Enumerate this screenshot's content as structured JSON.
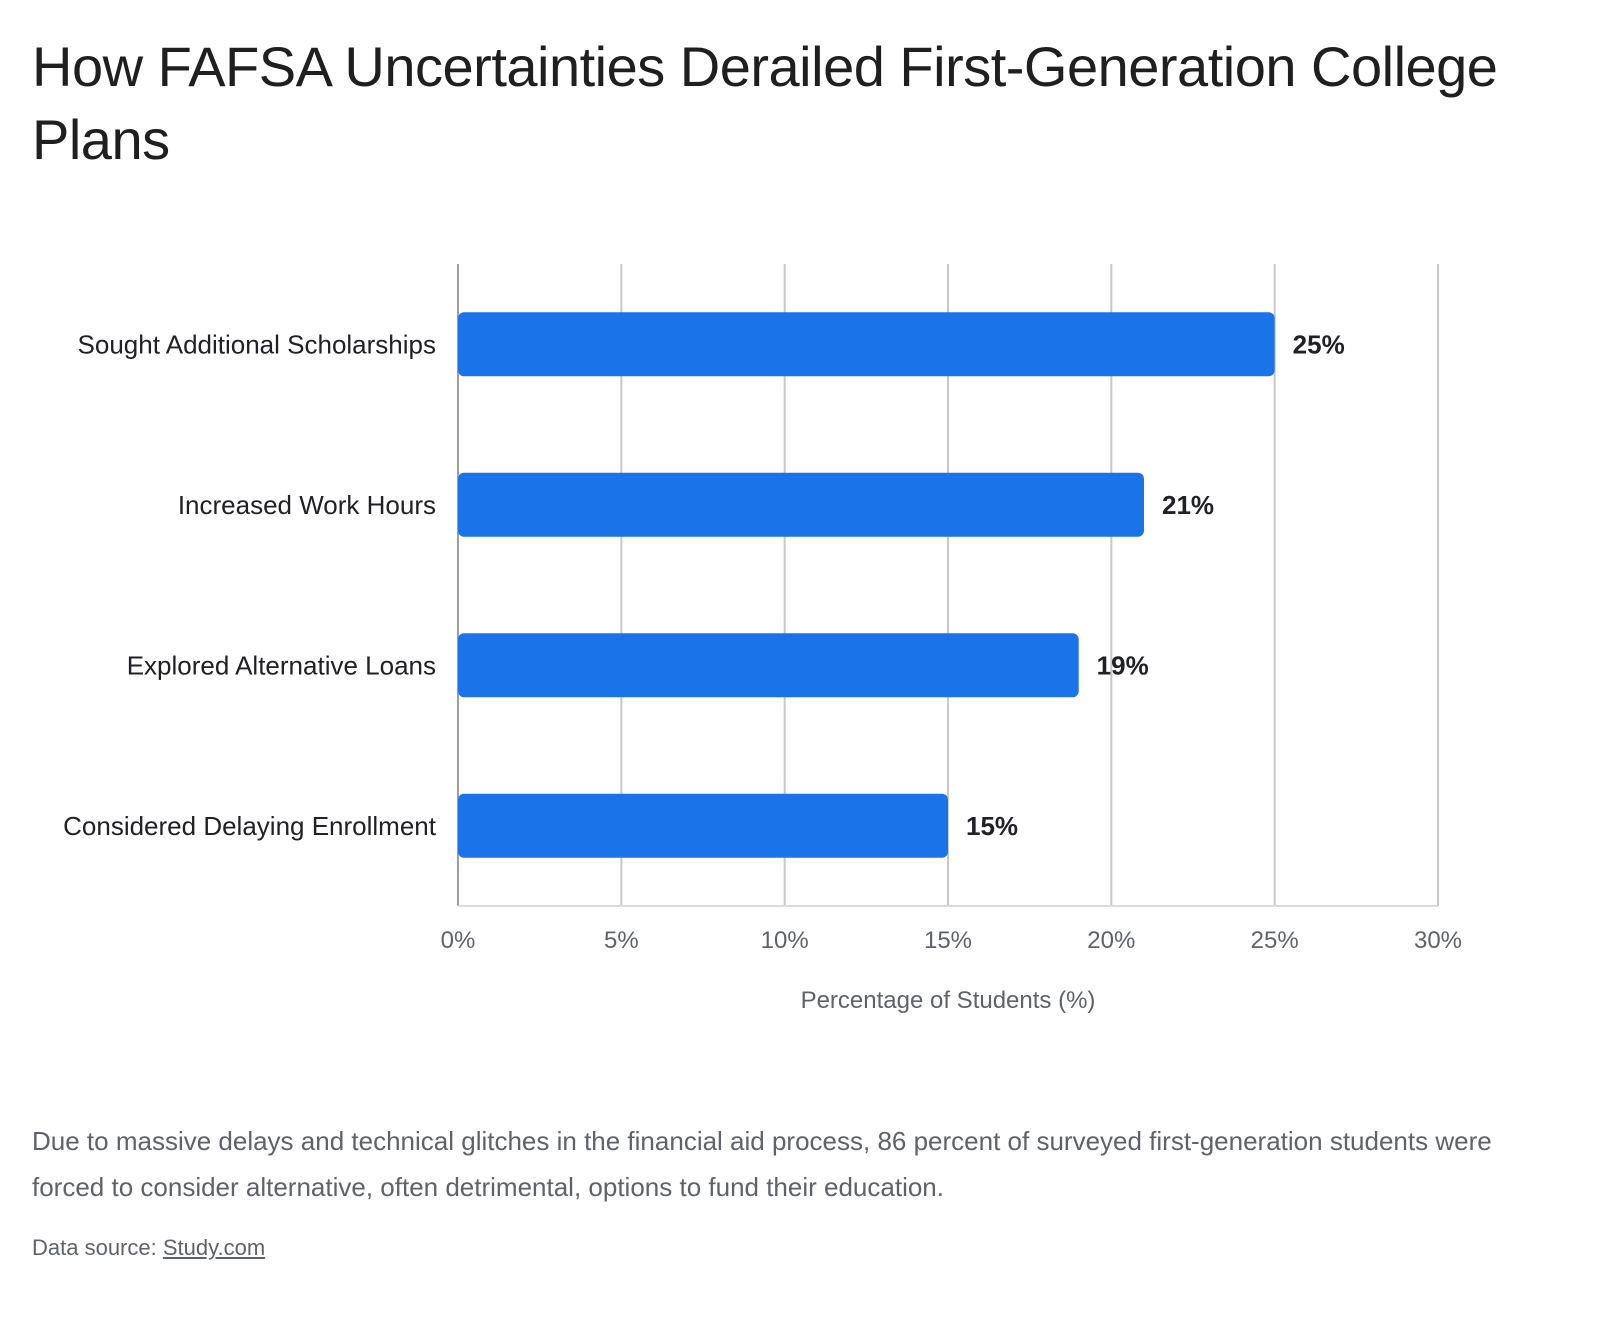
{
  "page": {
    "title": "How FAFSA Uncertainties Derailed First-Generation College Plans",
    "description": "Due to massive delays and technical glitches in the financial aid process, 86 percent of surveyed first-generation students were forced to consider alternative, often detrimental, options to fund their education.",
    "source_label": "Data source: ",
    "source_link": "Study.com"
  },
  "colors": {
    "bar": "#1a73e8",
    "grid": "#c8c8c8",
    "axis_text": "#5f6368",
    "category_text": "#202124",
    "value_label_text": "#202124"
  },
  "chart_data": {
    "type": "bar",
    "orientation": "horizontal",
    "categories": [
      "Sought Additional Scholarships",
      "Increased Work Hours",
      "Explored Alternative Loans",
      "Considered Delaying Enrollment"
    ],
    "values": [
      25,
      21,
      19,
      15
    ],
    "value_labels": [
      "25%",
      "21%",
      "19%",
      "15%"
    ],
    "xlabel": "Percentage of Students (%)",
    "ylabel": "",
    "xlim": [
      0,
      30
    ],
    "xticks": [
      0,
      5,
      10,
      15,
      20,
      25,
      30
    ],
    "xtick_labels": [
      "0%",
      "5%",
      "10%",
      "15%",
      "20%",
      "25%",
      "30%"
    ],
    "grid": true,
    "legend": "none"
  }
}
